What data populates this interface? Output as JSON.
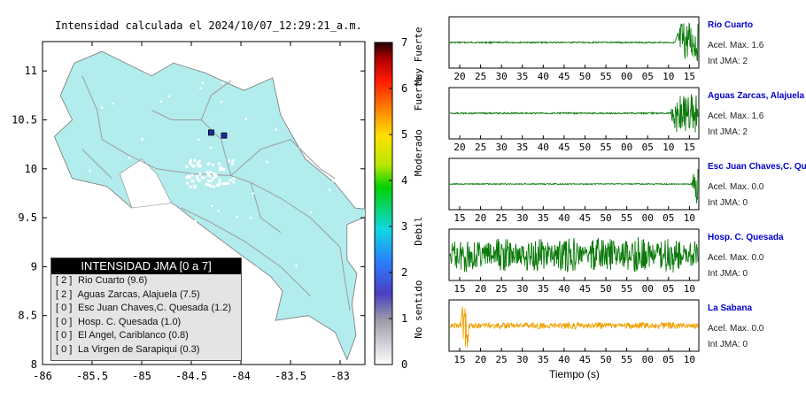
{
  "map": {
    "title": "Intensidad calculada el 2024/10/07_12:29:21_a.m.",
    "lon_ticks": [
      "-86",
      "-85.5",
      "-85",
      "-84.5",
      "-84",
      "-83.5",
      "-83"
    ],
    "lat_ticks": [
      "11",
      "10.5",
      "10",
      "9.5",
      "9",
      "8.5",
      "8"
    ],
    "xlim": [
      -86,
      -82.75
    ],
    "ylim": [
      8,
      11.3
    ],
    "land_color": "#b2ecec",
    "colorbar": {
      "ticks": [
        "0",
        "1",
        "2",
        "3",
        "4",
        "5",
        "6",
        "7"
      ],
      "range": [
        0,
        7
      ],
      "labels": [
        "No sentido",
        "Debil",
        "Moderado",
        "Fuerte",
        "Muy Fuerte"
      ]
    },
    "stations": [
      {
        "lon": -84.3,
        "lat": 10.37,
        "color": "#1a2aa8"
      },
      {
        "lon": -84.17,
        "lat": 10.34,
        "color": "#1a2aa8"
      }
    ],
    "legend": {
      "title": "INTENSIDAD JMA [0 a 7]",
      "items": [
        {
          "level": "[ 2 ]",
          "text": "Rio Cuarto (9.6)"
        },
        {
          "level": "[ 2 ]",
          "text": "Aguas Zarcas, Alajuela (7.5)"
        },
        {
          "level": "[ 0 ]",
          "text": "Esc Juan Chaves,C. Quesada (1.2)"
        },
        {
          "level": "[ 0 ]",
          "text": "Hosp. C. Quesada (1.0)"
        },
        {
          "level": "[ 0 ]",
          "text": "El Angel, Cariblanco (0.8)"
        },
        {
          "level": "[ 0 ]",
          "text": "La Virgen de Sarapiqui (0.3)"
        }
      ]
    }
  },
  "chart_data": [
    {
      "type": "line",
      "name": "Rio Cuarto",
      "color": "#0a7a0a",
      "x_ticks": [
        "20",
        "25",
        "30",
        "35",
        "40",
        "45",
        "50",
        "55",
        "00",
        "05",
        "10",
        "15"
      ],
      "accel_label": "Acel. Max. 1.6",
      "jma_label": "Int JMA: 2",
      "burst_start": 0.91,
      "burst_amp": 0.85,
      "base_amp": 0.03
    },
    {
      "type": "line",
      "name": "Aguas Zarcas, Alajuela",
      "color": "#0a7a0a",
      "x_ticks": [
        "20",
        "25",
        "30",
        "35",
        "40",
        "45",
        "50",
        "55",
        "00",
        "05",
        "10",
        "15"
      ],
      "accel_label": "Acel. Max. 1.6",
      "jma_label": "Int JMA: 2",
      "burst_start": 0.89,
      "burst_amp": 0.8,
      "base_amp": 0.03
    },
    {
      "type": "line",
      "name": "Esc Juan Chaves,C. Qu",
      "color": "#0a7a0a",
      "x_ticks": [
        "15",
        "20",
        "25",
        "30",
        "35",
        "40",
        "45",
        "50",
        "55",
        "00",
        "05",
        "10"
      ],
      "accel_label": "Acel. Max. 0.0",
      "jma_label": "Int JMA: 0",
      "burst_start": 0.975,
      "burst_amp": 0.9,
      "base_amp": 0.02
    },
    {
      "type": "line",
      "name": "Hosp. C. Quesada",
      "color": "#0a7a0a",
      "x_ticks": [
        "15",
        "20",
        "25",
        "30",
        "35",
        "40",
        "45",
        "50",
        "55",
        "00",
        "05",
        "10"
      ],
      "accel_label": "Acel. Max. 0.0",
      "jma_label": "Int JMA: 0",
      "burst_start": 0.0,
      "burst_amp": 0.75,
      "base_amp": 0.75
    },
    {
      "type": "line",
      "name": "La Sabana",
      "color": "#f0a000",
      "x_ticks": [
        "15",
        "20",
        "25",
        "30",
        "35",
        "40",
        "45",
        "50",
        "55",
        "00",
        "05",
        "10"
      ],
      "accel_label": "Acel. Max. 0.0",
      "jma_label": "Int JMA: 0",
      "burst_start": 0.0,
      "burst_amp": 0.15,
      "base_amp": 0.15,
      "spike_at": 0.06,
      "spike_amp": 0.95
    }
  ],
  "waveform_xlabel": "Tiempo (s)"
}
